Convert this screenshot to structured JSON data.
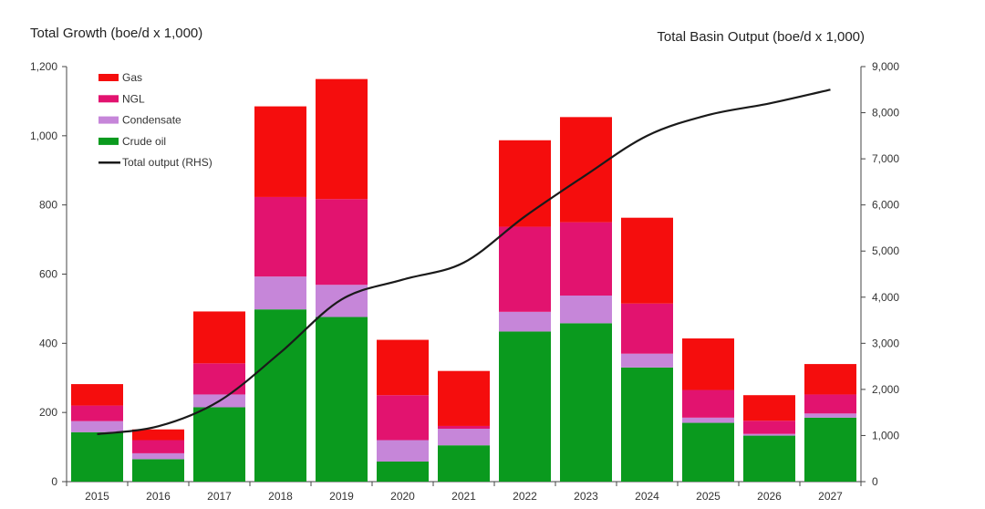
{
  "chart_data": {
    "type": "bar",
    "stacked": true,
    "left_title": "Total Growth (boe/d x 1,000)",
    "right_title": "Total Basin Output (boe/d x 1,000)",
    "categories": [
      "2015",
      "2016",
      "2017",
      "2018",
      "2019",
      "2020",
      "2021",
      "2022",
      "2023",
      "2024",
      "2025",
      "2026",
      "2027"
    ],
    "y_left": {
      "min": 0,
      "max": 1200,
      "ticks": [
        "0",
        "200",
        "400",
        "600",
        "800",
        "1,000",
        "1,200"
      ],
      "tick_values": [
        0,
        200,
        400,
        600,
        800,
        1000,
        1200
      ]
    },
    "y_right": {
      "min": 0,
      "max": 9000,
      "ticks": [
        "0",
        "1,000",
        "2,000",
        "3,000",
        "4,000",
        "5,000",
        "6,000",
        "7,000",
        "8,000",
        "9,000"
      ],
      "tick_values": [
        0,
        1000,
        2000,
        3000,
        4000,
        5000,
        6000,
        7000,
        8000,
        9000
      ]
    },
    "series": [
      {
        "name": "Crude oil",
        "color": "#0a9a1e",
        "values": [
          143,
          65,
          215,
          498,
          476,
          58,
          105,
          434,
          458,
          330,
          170,
          133,
          185
        ]
      },
      {
        "name": "Condensate",
        "color": "#c686d9",
        "values": [
          32,
          17,
          37,
          95,
          93,
          62,
          48,
          57,
          80,
          40,
          15,
          5,
          12
        ]
      },
      {
        "name": "NGL",
        "color": "#e2136f",
        "values": [
          45,
          38,
          90,
          230,
          248,
          130,
          8,
          246,
          212,
          145,
          80,
          38,
          55
        ]
      },
      {
        "name": "Gas",
        "color": "#f50d0d",
        "values": [
          62,
          31,
          150,
          262,
          347,
          160,
          159,
          250,
          304,
          248,
          149,
          74,
          88
        ]
      }
    ],
    "line": {
      "name": "Total output (RHS)",
      "color": "#1a1a1a",
      "values": [
        1030,
        1200,
        1750,
        2800,
        3950,
        4380,
        4750,
        5750,
        6650,
        7500,
        7950,
        8200,
        8500
      ]
    },
    "legend": {
      "position": "top-left",
      "entries": [
        {
          "label": "Gas",
          "color": "#f50d0d",
          "kind": "bar"
        },
        {
          "label": "NGL",
          "color": "#e2136f",
          "kind": "bar"
        },
        {
          "label": "Condensate",
          "color": "#c686d9",
          "kind": "bar"
        },
        {
          "label": "Crude oil",
          "color": "#0a9a1e",
          "kind": "bar"
        },
        {
          "label": "Total output (RHS)",
          "color": "#1a1a1a",
          "kind": "line"
        }
      ]
    },
    "grid": false
  }
}
